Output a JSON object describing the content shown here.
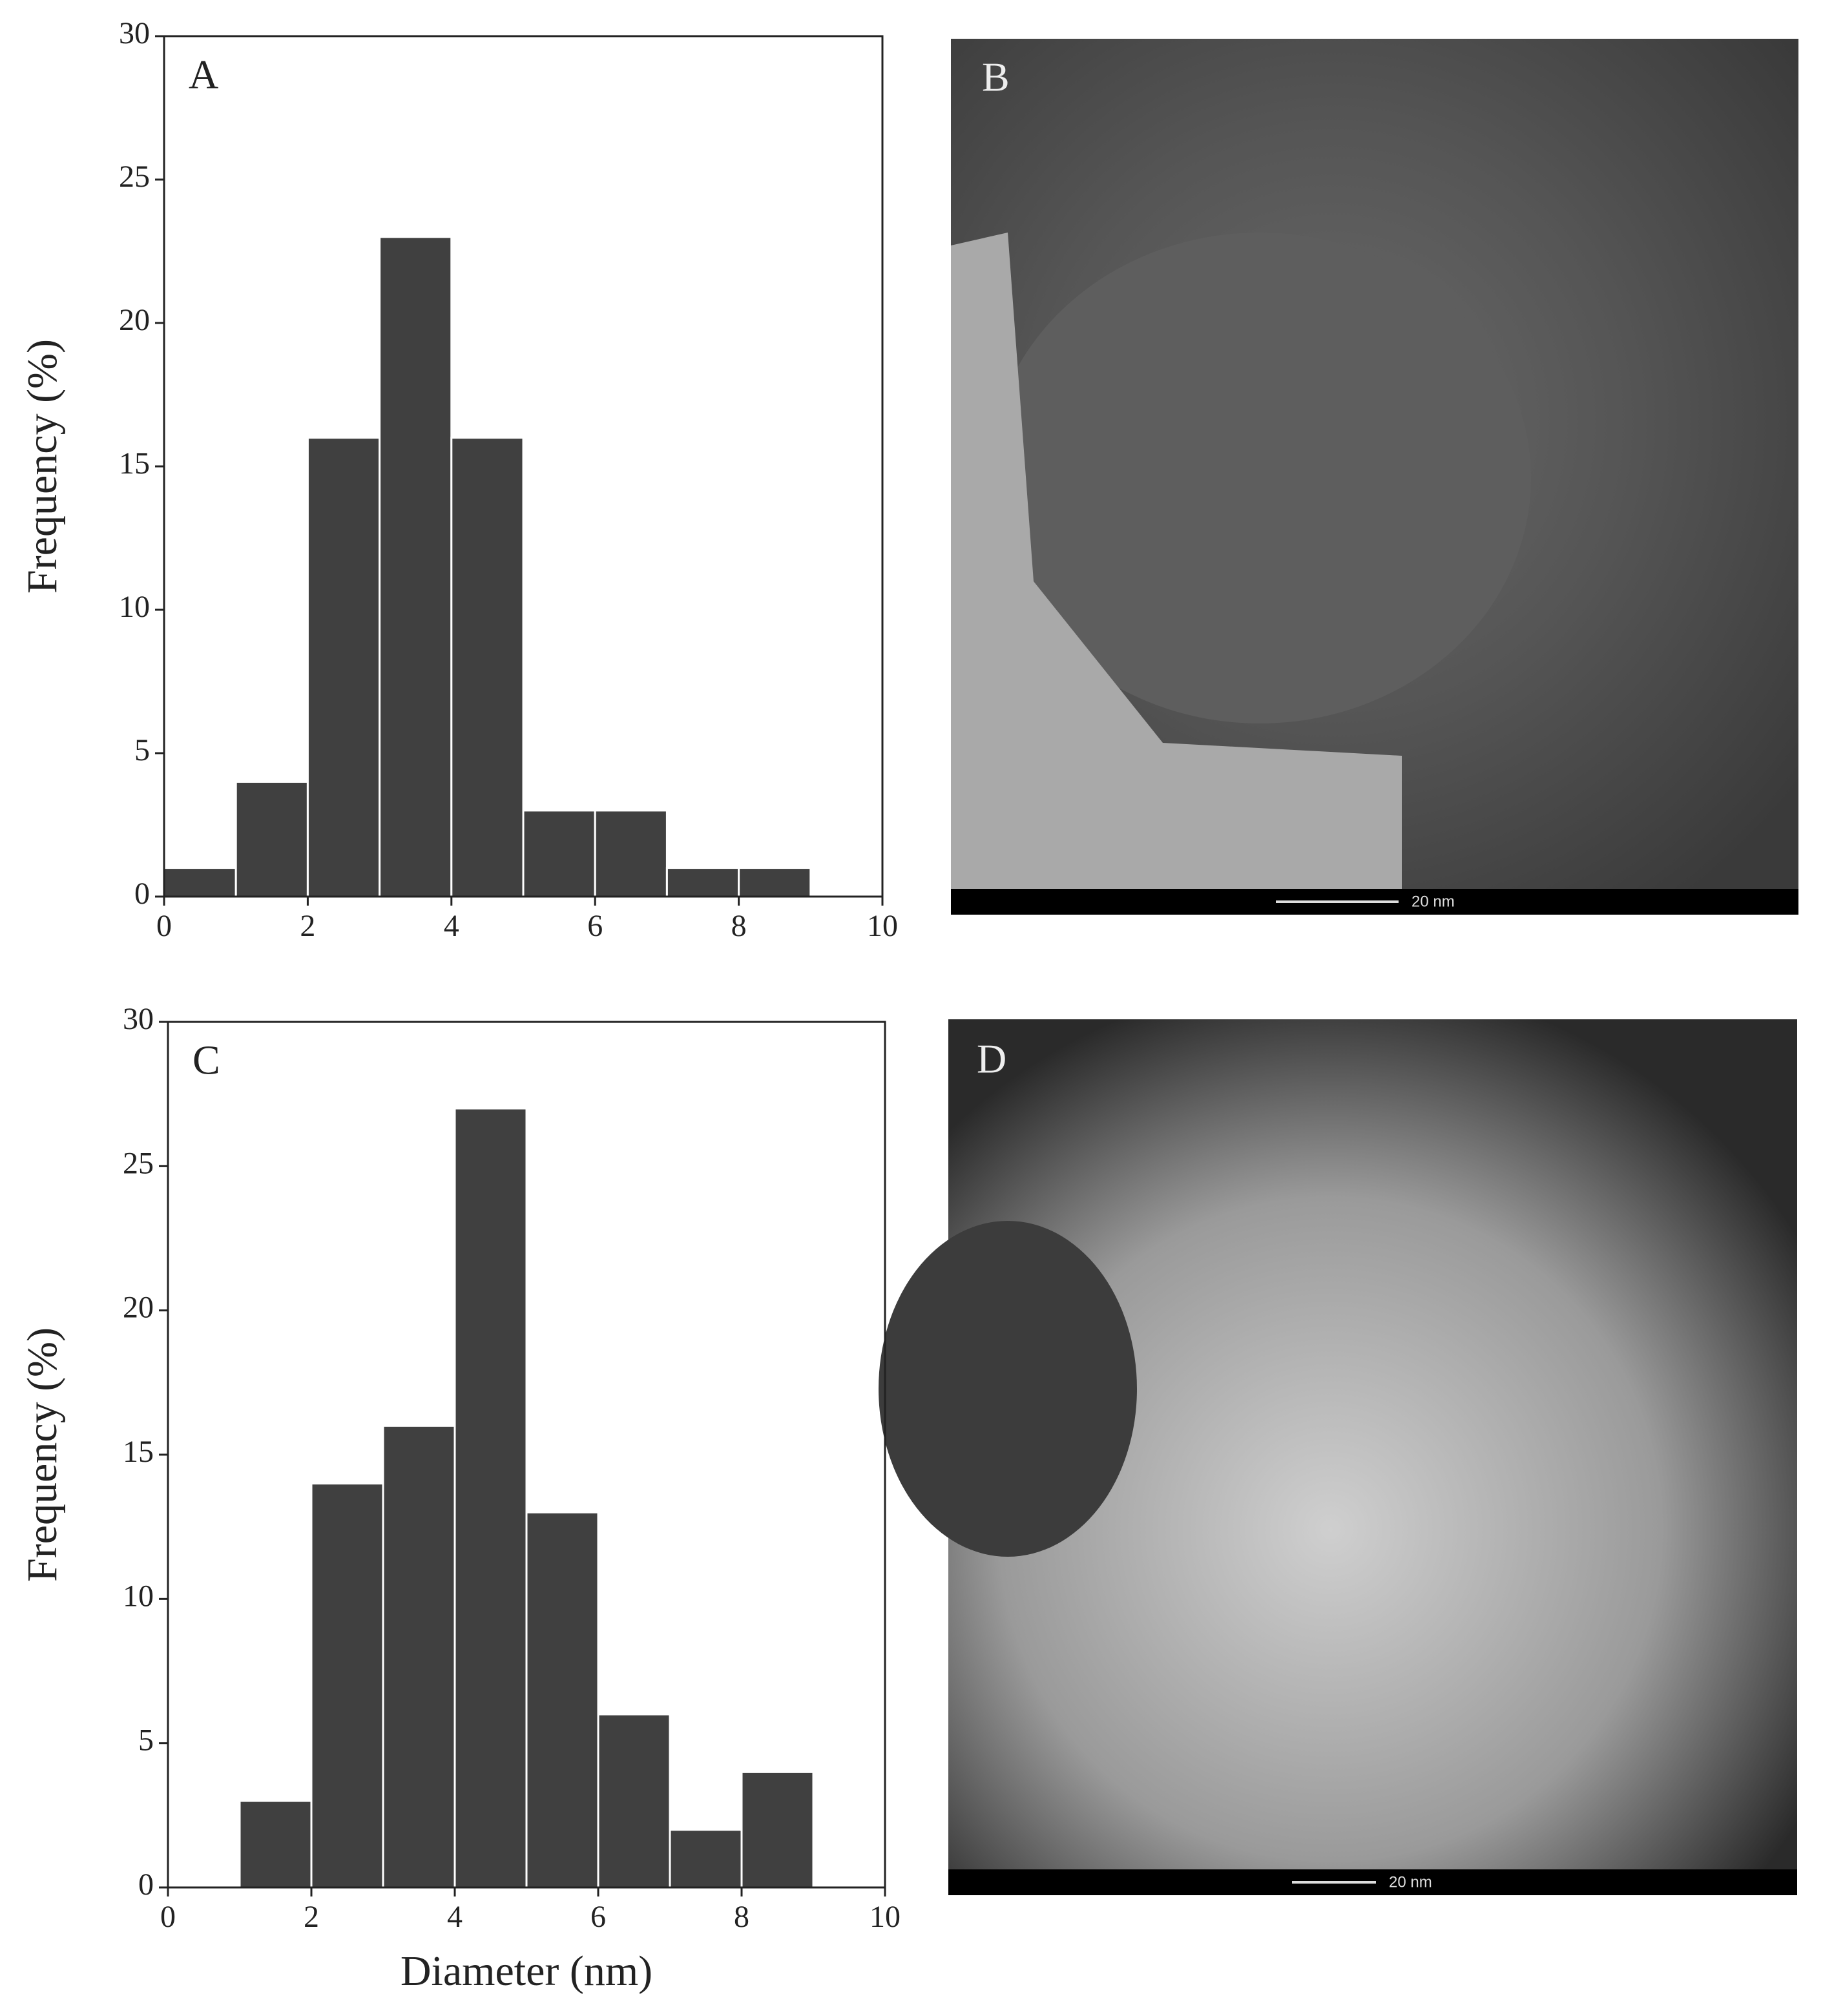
{
  "chart_data": [
    {
      "type": "histogram",
      "annotation": "A",
      "y_label": "Frequency (%)",
      "bins": [
        0,
        1,
        2,
        3,
        4,
        5,
        6,
        7,
        8,
        9
      ],
      "values": [
        1,
        4,
        16,
        23,
        16,
        3,
        3,
        1,
        1
      ],
      "color": "#404040",
      "xlim": [
        0,
        10
      ],
      "ylim": [
        0,
        30
      ],
      "xticks": [
        0,
        2,
        4,
        6,
        8,
        10
      ],
      "yticks": [
        0,
        5,
        10,
        15,
        20,
        25,
        30
      ]
    },
    {
      "type": "histogram",
      "annotation": "C",
      "y_label": "Frequency (%)",
      "x_label": "Diameter (nm)",
      "bins": [
        1,
        2,
        3,
        4,
        5,
        6,
        7,
        8,
        9
      ],
      "values": [
        3,
        14,
        16,
        27,
        13,
        6,
        2,
        4
      ],
      "color": "#404040",
      "xlim": [
        0,
        10
      ],
      "ylim": [
        0,
        30
      ],
      "xticks": [
        0,
        2,
        4,
        6,
        8,
        10
      ],
      "yticks": [
        0,
        5,
        10,
        15,
        20,
        25,
        30
      ]
    }
  ],
  "images": [
    {
      "label": "B",
      "scale_bar": "20 nm"
    },
    {
      "label": "D",
      "scale_bar": "20 nm"
    }
  ]
}
